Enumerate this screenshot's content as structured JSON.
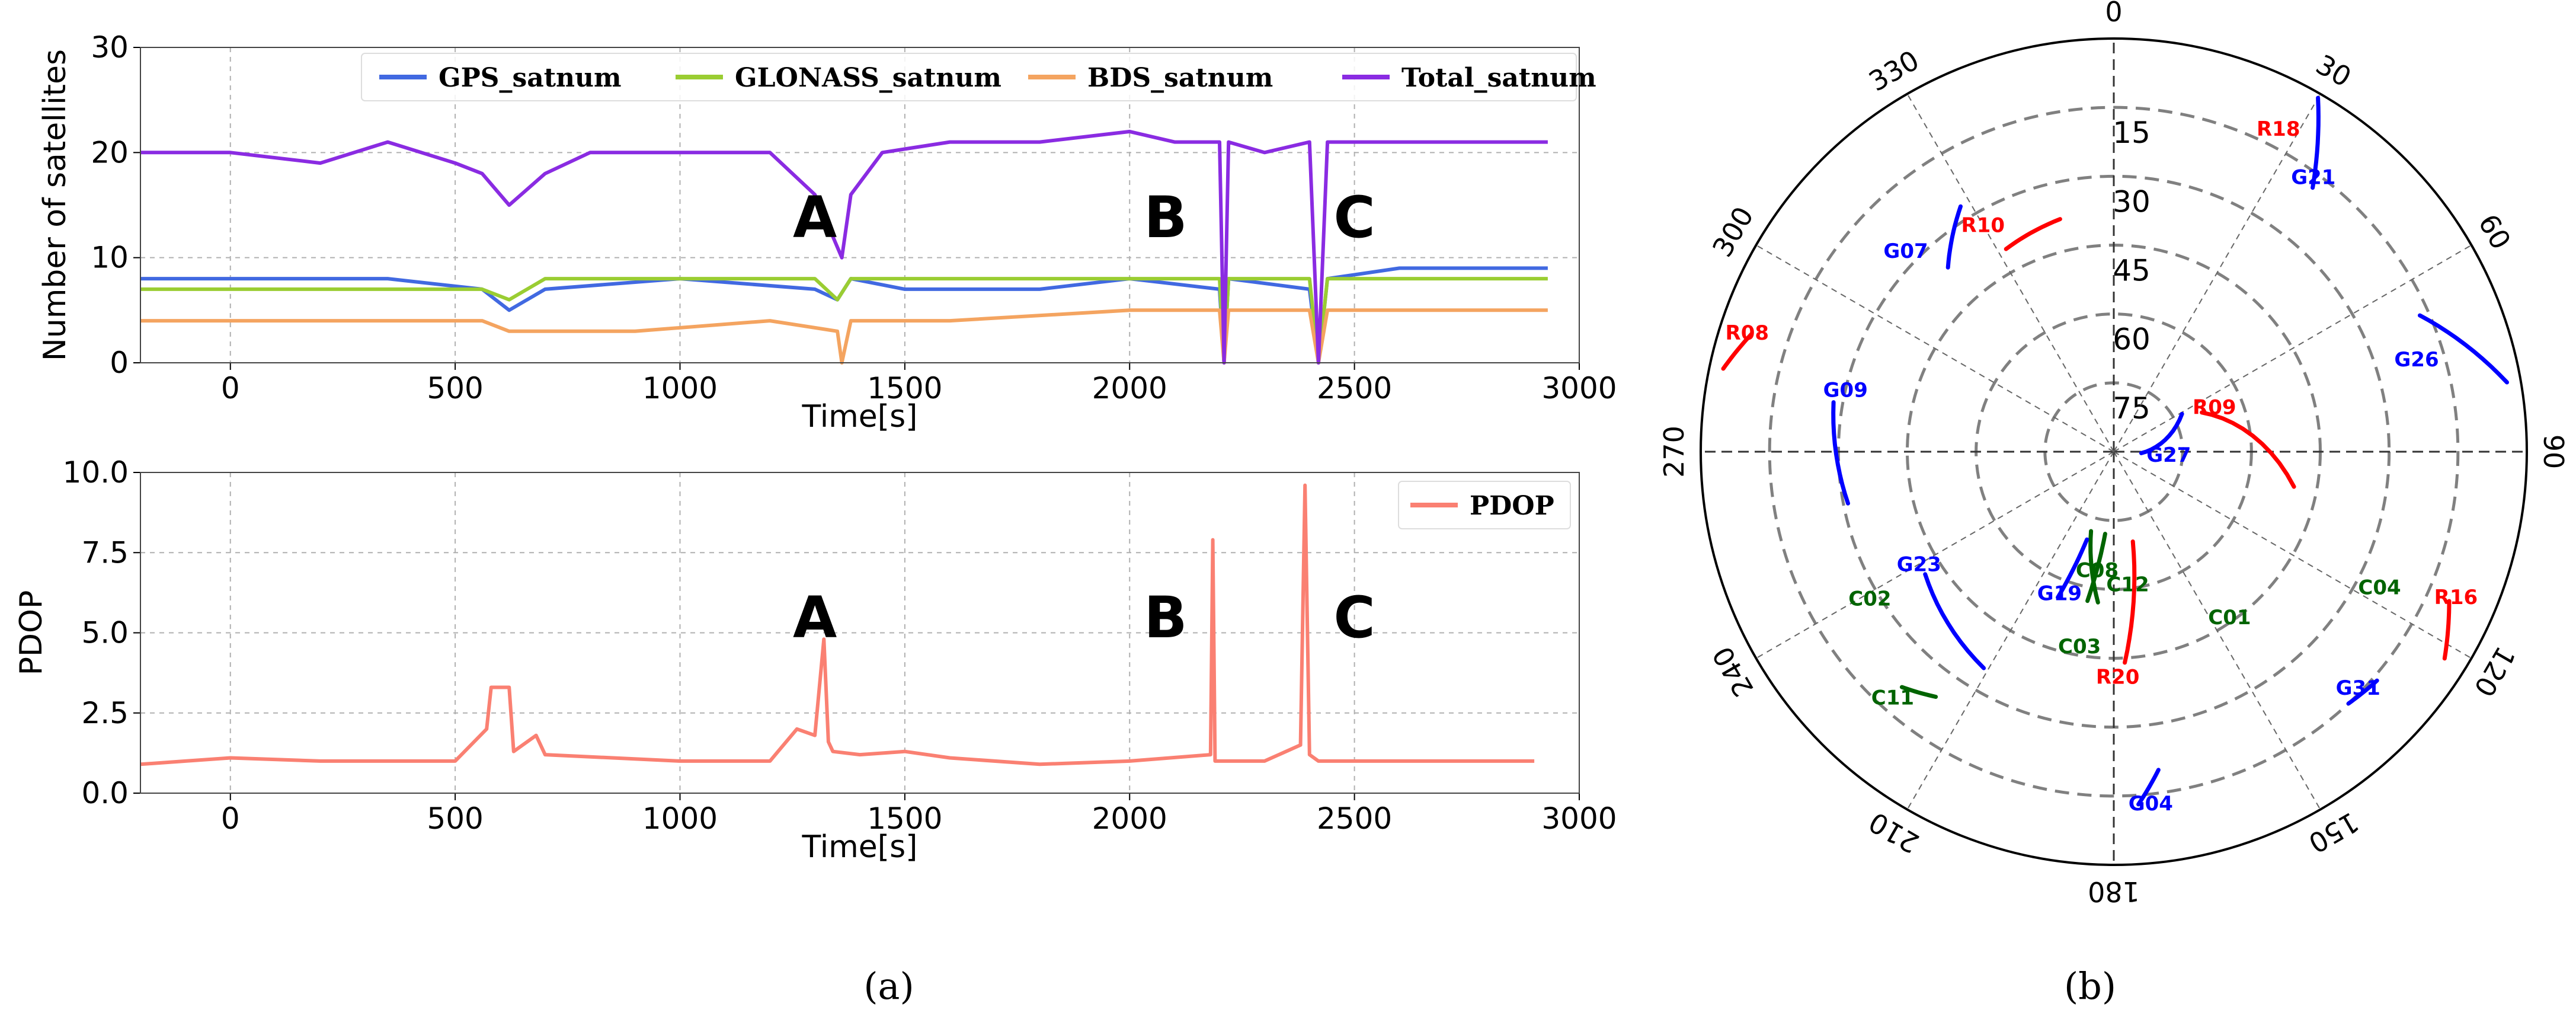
{
  "chart_data": [
    {
      "type": "line",
      "panel": "a-top",
      "title": "",
      "xlabel": "Time[s]",
      "ylabel": "Number of satellites",
      "xlim": [
        -200,
        3000
      ],
      "ylim": [
        0,
        30
      ],
      "xticks": [
        "0",
        "500",
        "1000",
        "1500",
        "2000",
        "2500",
        "3000"
      ],
      "yticks": [
        "0",
        "10",
        "20",
        "30"
      ],
      "legend_position": "top",
      "series": [
        {
          "name": "GPS_satnum",
          "color": "#4169E1",
          "x": [
            -200,
            350,
            560,
            620,
            700,
            1000,
            1300,
            1350,
            1380,
            1500,
            1800,
            2000,
            2200,
            2210,
            2220,
            2400,
            2420,
            2440,
            2600,
            2930
          ],
          "y": [
            8,
            8,
            7,
            5,
            7,
            8,
            7,
            6,
            8,
            7,
            7,
            8,
            7,
            0,
            8,
            7,
            0,
            8,
            9,
            9
          ]
        },
        {
          "name": "GLONASS_satnum",
          "color": "#9ACD32",
          "x": [
            -200,
            350,
            560,
            620,
            700,
            1000,
            1300,
            1350,
            1380,
            1500,
            1800,
            2000,
            2200,
            2210,
            2220,
            2400,
            2420,
            2440,
            2600,
            2930
          ],
          "y": [
            7,
            7,
            7,
            6,
            8,
            8,
            8,
            6,
            8,
            8,
            8,
            8,
            8,
            0,
            8,
            8,
            0,
            8,
            8,
            8
          ]
        },
        {
          "name": "BDS_satnum",
          "color": "#F4A460",
          "x": [
            -200,
            300,
            560,
            620,
            700,
            900,
            1200,
            1350,
            1360,
            1380,
            1600,
            2000,
            2200,
            2210,
            2220,
            2400,
            2420,
            2440,
            2600,
            2930
          ],
          "y": [
            4,
            4,
            4,
            3,
            3,
            3,
            4,
            3,
            0,
            4,
            4,
            5,
            5,
            0,
            5,
            5,
            0,
            5,
            5,
            5
          ]
        },
        {
          "name": "Total_satnum",
          "color": "#8A2BE2",
          "x": [
            -200,
            0,
            200,
            350,
            500,
            560,
            620,
            700,
            800,
            1000,
            1200,
            1300,
            1340,
            1360,
            1380,
            1450,
            1600,
            1800,
            2000,
            2100,
            2200,
            2210,
            2220,
            2300,
            2400,
            2420,
            2440,
            2600,
            2930
          ],
          "y": [
            20,
            20,
            19,
            21,
            19,
            18,
            15,
            18,
            20,
            20,
            20,
            16,
            12,
            10,
            16,
            20,
            21,
            21,
            22,
            21,
            21,
            0,
            21,
            20,
            21,
            0,
            21,
            21,
            21
          ]
        }
      ],
      "annotations": [
        "A",
        "B",
        "C"
      ],
      "annotation_x": [
        1300,
        2080,
        2500
      ]
    },
    {
      "type": "line",
      "panel": "a-bottom",
      "title": "",
      "xlabel": "Time[s]",
      "ylabel": "PDOP",
      "xlim": [
        -200,
        3000
      ],
      "ylim": [
        0,
        10
      ],
      "xticks": [
        "0",
        "500",
        "1000",
        "1500",
        "2000",
        "2500",
        "3000"
      ],
      "yticks": [
        "0.0",
        "2.5",
        "5.0",
        "7.5",
        "10.0"
      ],
      "legend_position": "top-right",
      "series": [
        {
          "name": "PDOP",
          "color": "#FA8072",
          "x": [
            -200,
            -100,
            0,
            200,
            500,
            570,
            580,
            620,
            630,
            680,
            700,
            1000,
            1200,
            1260,
            1300,
            1320,
            1330,
            1340,
            1400,
            1500,
            1600,
            1800,
            2000,
            2180,
            2185,
            2190,
            2300,
            2380,
            2390,
            2400,
            2420,
            2600,
            2900
          ],
          "y": [
            0.9,
            1.0,
            1.1,
            1.0,
            1.0,
            2.0,
            3.3,
            3.3,
            1.3,
            1.8,
            1.2,
            1.0,
            1.0,
            2.0,
            1.8,
            4.8,
            1.6,
            1.3,
            1.2,
            1.3,
            1.1,
            0.9,
            1.0,
            1.2,
            7.9,
            1.0,
            1.0,
            1.5,
            9.6,
            1.2,
            1.0,
            1.0,
            1.0
          ]
        }
      ],
      "annotations": [
        "A",
        "B",
        "C"
      ],
      "annotation_x": [
        1300,
        2080,
        2500
      ]
    },
    {
      "type": "scatter",
      "panel": "b",
      "subtype": "polar skyplot",
      "title": "",
      "azimuth_labels": [
        "0",
        "30",
        "60",
        "90",
        "120",
        "150",
        "180",
        "210",
        "240",
        "270",
        "300",
        "330"
      ],
      "elevation_labels": [
        "15",
        "30",
        "45",
        "60",
        "75"
      ],
      "elevation_rings": [
        15,
        30,
        45,
        60,
        75
      ],
      "satellites": [
        {
          "id": "R18",
          "system": "GLONASS",
          "color": "#FF0000",
          "azimuth": 27,
          "elevation": 11,
          "track": []
        },
        {
          "id": "G21",
          "system": "GPS",
          "color": "#0000FF",
          "azimuth": 36,
          "elevation": 16,
          "track": [
            [
              30,
              1
            ],
            [
              37,
              18
            ]
          ]
        },
        {
          "id": "G07",
          "system": "GPS",
          "color": "#0000FF",
          "azimuth": 314,
          "elevation": 27,
          "track": [
            [
              318,
              36
            ],
            [
              328,
              27
            ]
          ]
        },
        {
          "id": "R10",
          "system": "GLONASS",
          "color": "#FF0000",
          "azimuth": 330,
          "elevation": 33,
          "track": [
            [
              332,
              40
            ],
            [
              347,
              38
            ]
          ]
        },
        {
          "id": "R08",
          "system": "GLONASS",
          "color": "#FF0000",
          "azimuth": 288,
          "elevation": 6,
          "track": [
            [
              282,
              3
            ],
            [
              288,
              7
            ]
          ]
        },
        {
          "id": "G09",
          "system": "GPS",
          "color": "#0000FF",
          "azimuth": 283,
          "elevation": 30,
          "track": [
            [
              280,
              28
            ],
            [
              259,
              31
            ]
          ]
        },
        {
          "id": "G26",
          "system": "GPS",
          "color": "#0000FF",
          "azimuth": 73,
          "elevation": 21,
          "track": [
            [
              66,
              17
            ],
            [
              80,
              3
            ]
          ]
        },
        {
          "id": "R09",
          "system": "GLONASS",
          "color": "#FF0000",
          "azimuth": 66,
          "elevation": 66,
          "track": [
            [
              66,
              69
            ],
            [
              101,
              50
            ]
          ]
        },
        {
          "id": "G27",
          "system": "GPS",
          "color": "#0000FF",
          "azimuth": 93,
          "elevation": 78,
          "track": [
            [
              93,
              84
            ],
            [
              61,
              73
            ]
          ]
        },
        {
          "id": "R16",
          "system": "GLONASS",
          "color": "#FF0000",
          "azimuth": 113,
          "elevation": 9,
          "track": [
            [
              114,
              10
            ],
            [
              122,
              5
            ]
          ]
        },
        {
          "id": "C04",
          "system": "BDS",
          "color": "#006400",
          "azimuth": 117,
          "elevation": 25,
          "track": []
        },
        {
          "id": "G23",
          "system": "GPS",
          "color": "#0000FF",
          "azimuth": 240,
          "elevation": 41,
          "track": [
            [
              237,
              41
            ],
            [
              211,
              35
            ]
          ]
        },
        {
          "id": "C02",
          "system": "BDS",
          "color": "#006400",
          "azimuth": 239,
          "elevation": 28,
          "track": []
        },
        {
          "id": "C08",
          "system": "BDS",
          "color": "#006400",
          "azimuth": 188,
          "elevation": 64,
          "track": [
            [
              186,
              72
            ],
            [
              190,
              57
            ]
          ]
        },
        {
          "id": "C12",
          "system": "BDS",
          "color": "#006400",
          "azimuth": 174,
          "elevation": 61,
          "track": [
            [
              196,
              72
            ],
            [
              186,
              57
            ]
          ]
        },
        {
          "id": "G19",
          "system": "GPS",
          "color": "#0000FF",
          "azimuth": 201,
          "elevation": 57,
          "track": [
            [
              197,
              70
            ],
            [
              201,
              56
            ]
          ]
        },
        {
          "id": "C03",
          "system": "BDS",
          "color": "#006400",
          "azimuth": 190,
          "elevation": 47,
          "track": []
        },
        {
          "id": "C01",
          "system": "BDS",
          "color": "#006400",
          "azimuth": 145,
          "elevation": 46,
          "track": []
        },
        {
          "id": "R20",
          "system": "GLONASS",
          "color": "#FF0000",
          "azimuth": 179,
          "elevation": 41,
          "track": [
            [
              168,
              70
            ],
            [
              177,
              44
            ]
          ]
        },
        {
          "id": "G31",
          "system": "GPS",
          "color": "#0000FF",
          "azimuth": 134,
          "elevation": 16,
          "track": [
            [
              131,
              14
            ],
            [
              137,
              15
            ]
          ]
        },
        {
          "id": "C11",
          "system": "BDS",
          "color": "#006400",
          "azimuth": 222,
          "elevation": 18,
          "track": [
            [
              222,
              21
            ],
            [
              216,
              24
            ]
          ]
        },
        {
          "id": "G04",
          "system": "GPS",
          "color": "#0000FF",
          "azimuth": 174,
          "elevation": 13,
          "track": [
            [
              172,
              20
            ],
            [
              176,
              13
            ]
          ]
        }
      ]
    }
  ],
  "captions": {
    "a": "(a)",
    "b": "(b)"
  }
}
